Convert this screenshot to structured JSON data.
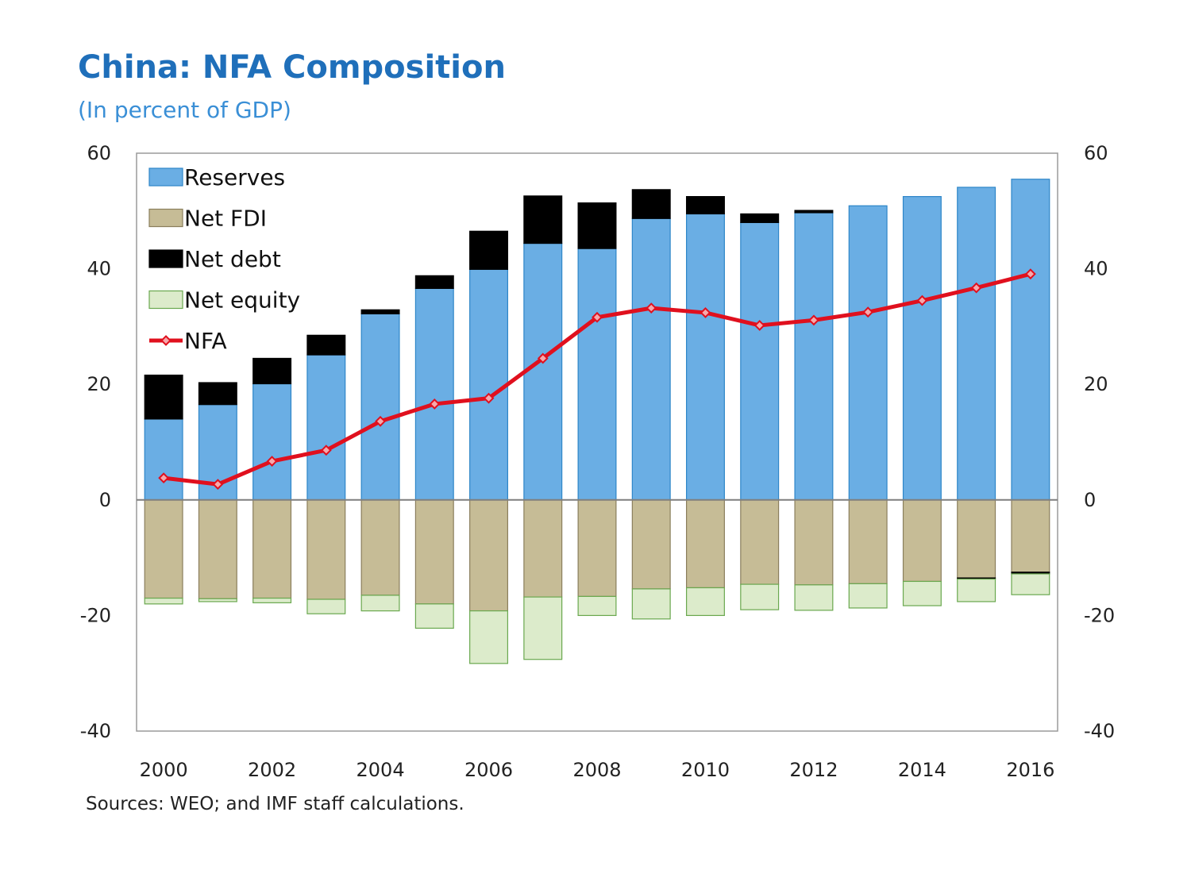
{
  "title": "China: NFA Composition",
  "subtitle": "(In percent of GDP)",
  "source": "Sources: WEO; and IMF staff calculations.",
  "chart_data": {
    "type": "bar",
    "stacked": true,
    "title": "China: NFA Composition",
    "subtitle": "(In percent of GDP)",
    "categories": [
      "2000",
      "2001",
      "2002",
      "2003",
      "2004",
      "2005",
      "2006",
      "2007",
      "2008",
      "2009",
      "2010",
      "2011",
      "2012",
      "2013",
      "2014",
      "2015",
      "2016"
    ],
    "x_tick_labels": [
      "2000",
      "",
      "2002",
      "",
      "2004",
      "",
      "2006",
      "",
      "2008",
      "",
      "2010",
      "",
      "2012",
      "",
      "2014",
      "",
      "2016"
    ],
    "ylim": [
      -40,
      60
    ],
    "yticks": [
      -40,
      -20,
      0,
      20,
      40,
      60
    ],
    "y_tick_labels": [
      "-40",
      "-20",
      "0",
      "20",
      "40",
      "60"
    ],
    "secondary_y_tick_labels": [
      "-40",
      "-20",
      "0",
      "20",
      "40",
      "60"
    ],
    "legend_position": "top-left",
    "grid": false,
    "series": [
      {
        "name": "Reserves",
        "kind": "bar",
        "color": "#6AAEE4",
        "edge": "#2E86C8",
        "values": [
          14.0,
          16.5,
          20.1,
          25.1,
          32.2,
          36.6,
          39.9,
          44.4,
          43.5,
          48.7,
          49.5,
          48.0,
          49.7,
          50.9,
          52.5,
          54.1,
          55.5
        ]
      },
      {
        "name": "Net FDI",
        "kind": "bar",
        "color": "#C6BC96",
        "edge": "#8A7E5C",
        "values": [
          -17.0,
          -17.1,
          -17.0,
          -17.2,
          -16.5,
          -18.0,
          -19.2,
          -16.8,
          -16.7,
          -15.4,
          -15.2,
          -14.6,
          -14.7,
          -14.5,
          -14.1,
          -13.5,
          -12.5
        ]
      },
      {
        "name": "Net debt",
        "kind": "bar",
        "color": "#000000",
        "edge": "#000000",
        "values": [
          7.6,
          3.8,
          4.4,
          3.4,
          0.7,
          2.2,
          6.6,
          8.2,
          7.9,
          5.0,
          3.0,
          1.5,
          0.4,
          0.0,
          0.0,
          -0.2,
          -0.3
        ]
      },
      {
        "name": "Net equity",
        "kind": "bar",
        "color": "#DCEBCB",
        "edge": "#6AA84F",
        "values": [
          -1.0,
          -0.5,
          -0.8,
          -2.5,
          -2.7,
          -4.2,
          -9.1,
          -10.8,
          -3.3,
          -5.2,
          -4.8,
          -4.4,
          -4.4,
          -4.2,
          -4.2,
          -3.9,
          -3.6
        ]
      },
      {
        "name": "NFA",
        "kind": "line",
        "color": "#E0101E",
        "marker_face": "#F7A8AC",
        "values": [
          3.8,
          2.7,
          6.7,
          8.6,
          13.6,
          16.6,
          17.6,
          24.5,
          31.6,
          33.2,
          32.4,
          30.2,
          31.1,
          32.5,
          34.5,
          36.7,
          39.1
        ]
      }
    ]
  }
}
